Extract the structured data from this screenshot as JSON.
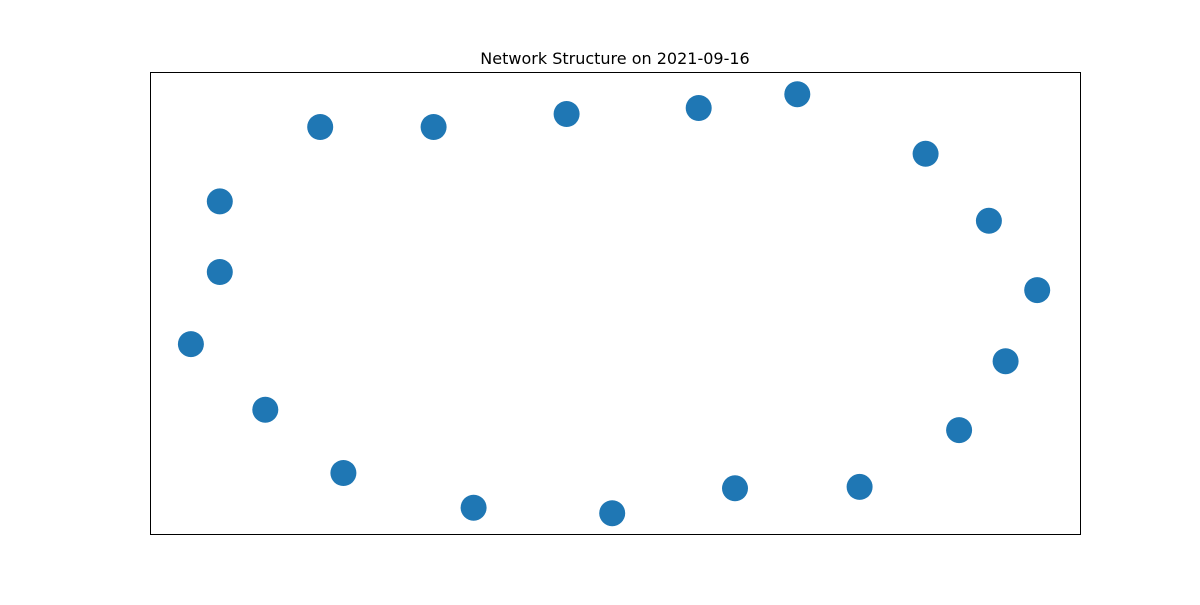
{
  "chart": {
    "title": "Network Structure on 2021-09-16",
    "node_color": "#1f77b4",
    "frame_color": "#000000",
    "grid": false,
    "axis_ticks": false
  },
  "chart_data": {
    "type": "scatter",
    "title": "Network Structure on 2021-09-16",
    "xlabel": "",
    "ylabel": "",
    "grid": false,
    "xlim": [
      0,
      1
    ],
    "ylim": [
      0,
      1
    ],
    "series": [
      {
        "points": [
          {
            "x": 0.183,
            "y": 0.881
          },
          {
            "x": 0.305,
            "y": 0.881
          },
          {
            "x": 0.448,
            "y": 0.909
          },
          {
            "x": 0.59,
            "y": 0.922
          },
          {
            "x": 0.696,
            "y": 0.952
          },
          {
            "x": 0.834,
            "y": 0.823
          },
          {
            "x": 0.902,
            "y": 0.678
          },
          {
            "x": 0.954,
            "y": 0.528
          },
          {
            "x": 0.92,
            "y": 0.374
          },
          {
            "x": 0.87,
            "y": 0.225
          },
          {
            "x": 0.763,
            "y": 0.102
          },
          {
            "x": 0.629,
            "y": 0.099
          },
          {
            "x": 0.497,
            "y": 0.045
          },
          {
            "x": 0.348,
            "y": 0.057
          },
          {
            "x": 0.208,
            "y": 0.132
          },
          {
            "x": 0.124,
            "y": 0.269
          },
          {
            "x": 0.044,
            "y": 0.411
          },
          {
            "x": 0.075,
            "y": 0.567
          },
          {
            "x": 0.075,
            "y": 0.72
          }
        ]
      }
    ]
  }
}
